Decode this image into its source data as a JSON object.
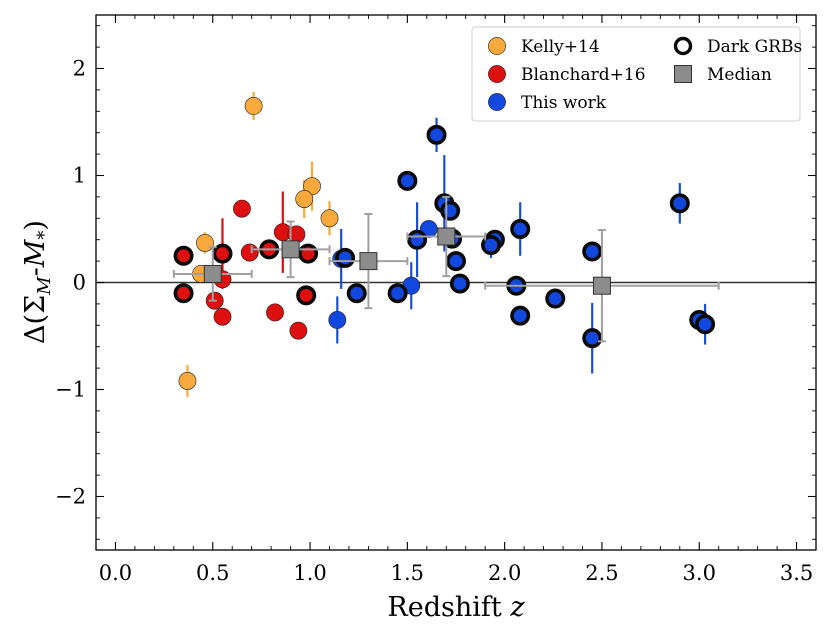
{
  "chart_data": {
    "type": "scatter",
    "xlabel_prefix": "Redshift",
    "xlabel_var": "z",
    "ylabel_parts": [
      "Δ(Σ",
      "M",
      "-",
      "M",
      "*",
      ")"
    ],
    "xlim": [
      -0.1,
      3.6
    ],
    "ylim": [
      -2.5,
      2.5
    ],
    "xticks": [
      0.0,
      0.5,
      1.0,
      1.5,
      2.0,
      2.5,
      3.0,
      3.5
    ],
    "xtick_labels": [
      "0.0",
      "0.5",
      "1.0",
      "1.5",
      "2.0",
      "2.5",
      "3.0",
      "3.5"
    ],
    "yticks": [
      -2,
      -1,
      0,
      1,
      2
    ],
    "ytick_labels": [
      "−2",
      "−1",
      "0",
      "1",
      "2"
    ],
    "hline_y": 0,
    "legend": [
      {
        "label": "Kelly+14",
        "kind": "kelly"
      },
      {
        "label": "Blanchard+16",
        "kind": "blanchard"
      },
      {
        "label": "This work",
        "kind": "thiswork"
      },
      {
        "label": "Dark GRBs",
        "kind": "dark"
      },
      {
        "label": "Median",
        "kind": "median"
      }
    ],
    "colors": {
      "kelly": "#f9a93c",
      "blanchard": "#dd0f0f",
      "thiswork": "#1348df",
      "thiswork_err": "#1a4fd0",
      "dark_edge": "#0a0a0a",
      "median": "#8c8c8c",
      "median_err": "#a0a0a0",
      "line": "#333333"
    },
    "series": [
      {
        "name": "Kelly+14",
        "kind": "kelly",
        "points": [
          {
            "x": 0.71,
            "y": 1.65,
            "err": 0.13
          },
          {
            "x": 1.01,
            "y": 0.9,
            "err": 0.23
          },
          {
            "x": 0.97,
            "y": 0.78,
            "err": 0.18
          },
          {
            "x": 1.1,
            "y": 0.6,
            "err": 0.16
          },
          {
            "x": 0.46,
            "y": 0.37,
            "err": 0.1
          },
          {
            "x": 0.44,
            "y": 0.08,
            "err": 0.08
          },
          {
            "x": 0.37,
            "y": -0.92,
            "err": 0.15
          }
        ]
      },
      {
        "name": "Blanchard+16",
        "kind": "blanchard",
        "points": [
          {
            "x": 0.65,
            "y": 0.69,
            "err": 0.0
          },
          {
            "x": 0.86,
            "y": 0.47,
            "err": 0.38
          },
          {
            "x": 0.93,
            "y": 0.45,
            "err": 0.0
          },
          {
            "x": 0.69,
            "y": 0.28,
            "err": 0.0
          },
          {
            "x": 0.55,
            "y": 0.03,
            "err": 0.0
          },
          {
            "x": 0.51,
            "y": -0.17,
            "err": 0.0
          },
          {
            "x": 0.55,
            "y": -0.32,
            "err": 0.0
          },
          {
            "x": 0.82,
            "y": -0.28,
            "err": 0.0
          },
          {
            "x": 0.94,
            "y": -0.45,
            "err": 0.0
          }
        ]
      },
      {
        "name": "Blanchard+16 dark",
        "kind": "blanchard",
        "dark": true,
        "points": [
          {
            "x": 0.35,
            "y": 0.25,
            "err": 0.0
          },
          {
            "x": 0.55,
            "y": 0.27,
            "err": 0.33
          },
          {
            "x": 0.79,
            "y": 0.31,
            "err": 0.0
          },
          {
            "x": 0.35,
            "y": -0.1,
            "err": 0.0
          },
          {
            "x": 0.98,
            "y": -0.12,
            "err": 0.0
          },
          {
            "x": 0.99,
            "y": 0.27,
            "err": 0.0
          }
        ]
      },
      {
        "name": "This work",
        "kind": "thiswork",
        "points": [
          {
            "x": 1.61,
            "y": 0.5,
            "err": 0.0
          },
          {
            "x": 1.16,
            "y": 0.22,
            "err": 0.28
          },
          {
            "x": 1.14,
            "y": -0.35,
            "err": 0.22
          },
          {
            "x": 1.52,
            "y": -0.03,
            "err": 0.22
          }
        ]
      },
      {
        "name": "This work dark",
        "kind": "thiswork",
        "dark": true,
        "points": [
          {
            "x": 1.65,
            "y": 1.38,
            "err": 0.16
          },
          {
            "x": 1.5,
            "y": 0.95,
            "err": 0.0
          },
          {
            "x": 1.69,
            "y": 0.74,
            "err": 0.45
          },
          {
            "x": 1.72,
            "y": 0.67,
            "err": 0.0
          },
          {
            "x": 1.55,
            "y": 0.4,
            "err": 0.35
          },
          {
            "x": 1.73,
            "y": 0.41,
            "err": 0.0
          },
          {
            "x": 1.18,
            "y": 0.23,
            "err": 0.0
          },
          {
            "x": 1.75,
            "y": 0.2,
            "err": 0.0
          },
          {
            "x": 1.95,
            "y": 0.4,
            "err": 0.0
          },
          {
            "x": 1.93,
            "y": 0.35,
            "err": 0.12
          },
          {
            "x": 2.08,
            "y": 0.5,
            "err": 0.25
          },
          {
            "x": 2.45,
            "y": 0.29,
            "err": 0.0
          },
          {
            "x": 2.9,
            "y": 0.74,
            "err": 0.19
          },
          {
            "x": 1.77,
            "y": -0.01,
            "err": 0.0
          },
          {
            "x": 2.06,
            "y": -0.03,
            "err": 0.0
          },
          {
            "x": 1.24,
            "y": -0.1,
            "err": 0.0
          },
          {
            "x": 1.45,
            "y": -0.1,
            "err": 0.0
          },
          {
            "x": 2.26,
            "y": -0.15,
            "err": 0.0
          },
          {
            "x": 2.08,
            "y": -0.31,
            "err": 0.0
          },
          {
            "x": 3.0,
            "y": -0.35,
            "err": 0.0
          },
          {
            "x": 3.03,
            "y": -0.39,
            "err": 0.19
          },
          {
            "x": 2.45,
            "y": -0.52,
            "err": 0.33
          }
        ]
      },
      {
        "name": "Median",
        "kind": "median",
        "points": [
          {
            "x": 0.5,
            "y": 0.08,
            "xerr": 0.2,
            "yerr": 0.25
          },
          {
            "x": 0.9,
            "y": 0.31,
            "xerr": 0.2,
            "yerr": 0.26
          },
          {
            "x": 1.3,
            "y": 0.2,
            "xerr": 0.2,
            "yerr": 0.44
          },
          {
            "x": 1.7,
            "y": 0.43,
            "xerr": 0.2,
            "yerr": 0.37
          },
          {
            "x": 2.5,
            "y": -0.03,
            "xerr": 0.6,
            "yerr": 0.52
          }
        ]
      }
    ]
  }
}
